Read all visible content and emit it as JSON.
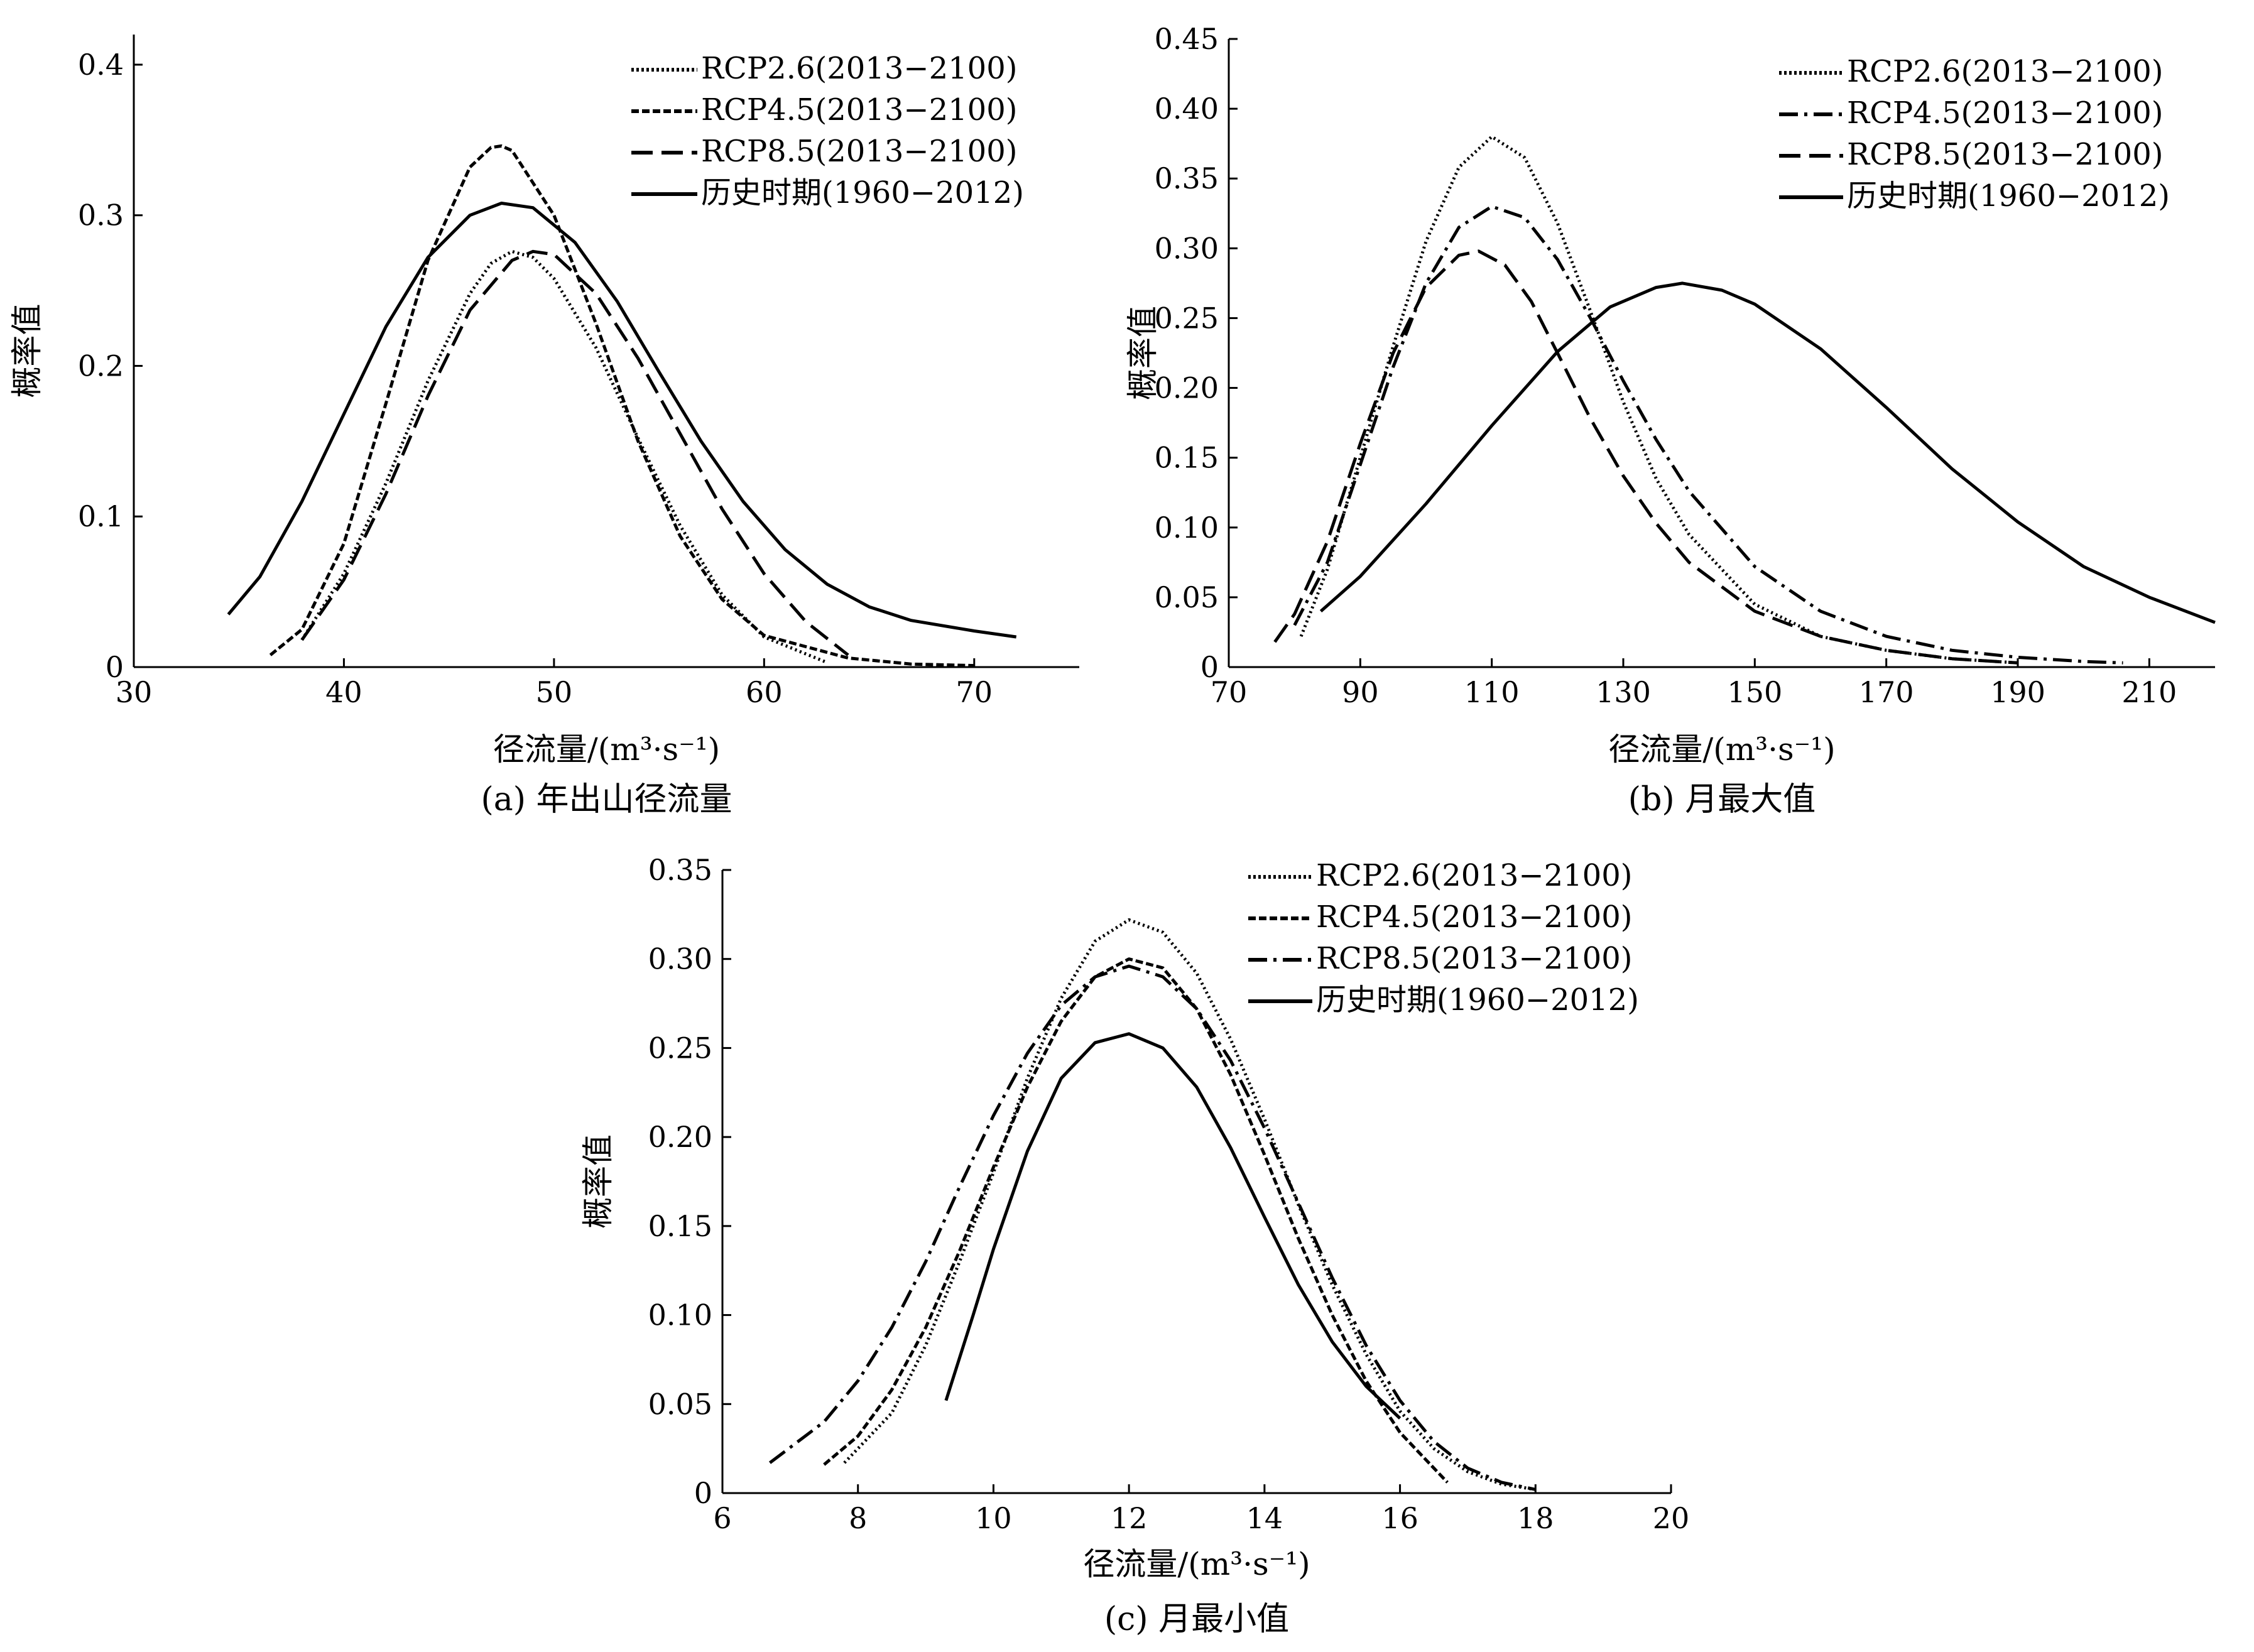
{
  "figure": {
    "panels": [
      {
        "caption": "(a) 年出山径流量",
        "chart_data": {
          "type": "line",
          "title": "",
          "xlabel": "径流量/(m³·s⁻¹)",
          "ylabel": "概率值",
          "xlim": [
            30,
            75
          ],
          "ylim": [
            0,
            0.42
          ],
          "xticks": [
            30,
            40,
            50,
            60,
            70
          ],
          "yticks": [
            0,
            0.1,
            0.2,
            0.3,
            0.4
          ],
          "xtick_labels": [
            "30",
            "40",
            "50",
            "60",
            "70"
          ],
          "ytick_labels": [
            "0",
            "0.1",
            "0.2",
            "0.3",
            "0.4"
          ],
          "grid": false,
          "legend_position": "top-right",
          "series": [
            {
              "name": "RCP2.6(2013−2100)",
              "style": "dotted",
              "x": [
                38,
                40,
                42,
                44,
                46,
                47,
                48,
                49,
                50,
                52,
                54,
                56,
                58,
                60,
                63
              ],
              "y": [
                0.018,
                0.062,
                0.122,
                0.19,
                0.248,
                0.268,
                0.276,
                0.272,
                0.258,
                0.212,
                0.152,
                0.094,
                0.048,
                0.02,
                0.003
              ]
            },
            {
              "name": "RCP4.5(2013−2100)",
              "style": "short-dash",
              "x": [
                36.5,
                38,
                40,
                42,
                44,
                46,
                47,
                47.5,
                48,
                50,
                52,
                54,
                56,
                58,
                60,
                64,
                67,
                70
              ],
              "y": [
                0.008,
                0.025,
                0.082,
                0.175,
                0.27,
                0.332,
                0.345,
                0.346,
                0.343,
                0.3,
                0.228,
                0.15,
                0.087,
                0.045,
                0.021,
                0.006,
                0.002,
                0.001
              ]
            },
            {
              "name": "RCP8.5(2013−2100)",
              "style": "long-dash",
              "x": [
                38,
                40,
                42,
                44,
                46,
                48,
                49,
                50,
                52,
                54,
                56,
                58,
                60,
                62,
                64
              ],
              "y": [
                0.018,
                0.058,
                0.115,
                0.18,
                0.237,
                0.27,
                0.276,
                0.274,
                0.248,
                0.205,
                0.155,
                0.105,
                0.062,
                0.03,
                0.008
              ]
            },
            {
              "name": "历史时期(1960−2012)",
              "style": "solid",
              "x": [
                34.5,
                36,
                38,
                40,
                42,
                44,
                46,
                47.5,
                49,
                51,
                53,
                55,
                57,
                59,
                61,
                63,
                65,
                67,
                70,
                72
              ],
              "y": [
                0.035,
                0.06,
                0.11,
                0.168,
                0.226,
                0.272,
                0.3,
                0.308,
                0.305,
                0.282,
                0.243,
                0.196,
                0.15,
                0.11,
                0.078,
                0.055,
                0.04,
                0.031,
                0.024,
                0.02
              ]
            }
          ]
        }
      },
      {
        "caption": "(b) 月最大值",
        "chart_data": {
          "type": "line",
          "title": "",
          "xlabel": "径流量/(m³·s⁻¹)",
          "ylabel": "概率值",
          "xlim": [
            70,
            220
          ],
          "ylim": [
            0,
            0.45
          ],
          "xticks": [
            70,
            90,
            110,
            130,
            150,
            170,
            190,
            210
          ],
          "yticks": [
            0,
            0.05,
            0.1,
            0.15,
            0.2,
            0.25,
            0.3,
            0.35,
            0.4,
            0.45
          ],
          "xtick_labels": [
            "70",
            "90",
            "110",
            "130",
            "150",
            "170",
            "190",
            "210"
          ],
          "ytick_labels": [
            "0",
            "0.05",
            "0.10",
            "0.15",
            "0.20",
            "0.25",
            "0.30",
            "0.35",
            "0.40",
            "0.45"
          ],
          "grid": false,
          "legend_position": "top-right",
          "series": [
            {
              "name": "RCP2.6(2013−2100)",
              "style": "dotted",
              "x": [
                81,
                85,
                90,
                95,
                100,
                105,
                110,
                115,
                120,
                125,
                130,
                135,
                140,
                150,
                160,
                170,
                180,
                190
              ],
              "y": [
                0.022,
                0.07,
                0.15,
                0.23,
                0.305,
                0.358,
                0.38,
                0.365,
                0.318,
                0.255,
                0.19,
                0.135,
                0.095,
                0.045,
                0.022,
                0.012,
                0.006,
                0.003
              ]
            },
            {
              "name": "RCP4.5(2013−2100)",
              "style": "dash-dot",
              "x": [
                80,
                85,
                90,
                95,
                100,
                105,
                110,
                115,
                120,
                125,
                130,
                135,
                140,
                150,
                160,
                170,
                180,
                190,
                200,
                206
              ],
              "y": [
                0.03,
                0.075,
                0.145,
                0.215,
                0.275,
                0.315,
                0.33,
                0.322,
                0.292,
                0.25,
                0.205,
                0.163,
                0.126,
                0.072,
                0.04,
                0.022,
                0.012,
                0.007,
                0.004,
                0.003
              ]
            },
            {
              "name": "RCP8.5(2013−2100)",
              "style": "long-dash",
              "x": [
                77,
                80,
                85,
                90,
                95,
                100,
                105,
                108,
                112,
                116,
                120,
                125,
                130,
                135,
                140,
                150,
                160,
                170,
                180,
                190
              ],
              "y": [
                0.018,
                0.038,
                0.09,
                0.16,
                0.225,
                0.272,
                0.295,
                0.298,
                0.288,
                0.262,
                0.225,
                0.178,
                0.137,
                0.103,
                0.075,
                0.04,
                0.022,
                0.012,
                0.006,
                0.003
              ]
            },
            {
              "name": "历史时期(1960−2012)",
              "style": "solid",
              "x": [
                84,
                90,
                100,
                110,
                120,
                128,
                135,
                139,
                145,
                150,
                160,
                170,
                180,
                190,
                200,
                210,
                220
              ],
              "y": [
                0.04,
                0.065,
                0.117,
                0.173,
                0.226,
                0.258,
                0.272,
                0.275,
                0.27,
                0.26,
                0.228,
                0.186,
                0.142,
                0.104,
                0.072,
                0.05,
                0.032
              ]
            }
          ]
        }
      },
      {
        "caption": "(c) 月最小值",
        "chart_data": {
          "type": "line",
          "title": "",
          "xlabel": "径流量/(m³·s⁻¹)",
          "ylabel": "概率值",
          "xlim": [
            6,
            20
          ],
          "ylim": [
            0,
            0.35
          ],
          "xticks": [
            6,
            8,
            10,
            12,
            14,
            16,
            18,
            20
          ],
          "yticks": [
            0,
            0.05,
            0.1,
            0.15,
            0.2,
            0.25,
            0.3,
            0.35
          ],
          "xtick_labels": [
            "6",
            "8",
            "10",
            "12",
            "14",
            "16",
            "18",
            "20"
          ],
          "ytick_labels": [
            "0",
            "0.05",
            "0.10",
            "0.15",
            "0.20",
            "0.25",
            "0.30",
            "0.35"
          ],
          "grid": false,
          "legend_position": "top-right",
          "series": [
            {
              "name": "RCP2.6(2013−2100)",
              "style": "dotted",
              "x": [
                7.8,
                8.5,
                9,
                9.5,
                10,
                10.5,
                11,
                11.5,
                12,
                12.5,
                13,
                13.5,
                14,
                14.5,
                15,
                15.5,
                16,
                16.5,
                17,
                17.5,
                18
              ],
              "y": [
                0.017,
                0.045,
                0.083,
                0.13,
                0.18,
                0.233,
                0.278,
                0.31,
                0.322,
                0.315,
                0.292,
                0.255,
                0.21,
                0.162,
                0.117,
                0.078,
                0.046,
                0.025,
                0.012,
                0.005,
                0.002
              ]
            },
            {
              "name": "RCP4.5(2013−2100)",
              "style": "short-dash",
              "x": [
                7.5,
                8,
                8.5,
                9,
                9.5,
                10,
                10.5,
                11,
                11.5,
                12,
                12.5,
                13,
                13.5,
                14,
                14.5,
                15,
                15.5,
                16,
                16.7
              ],
              "y": [
                0.016,
                0.032,
                0.058,
                0.093,
                0.136,
                0.183,
                0.228,
                0.265,
                0.29,
                0.3,
                0.295,
                0.272,
                0.235,
                0.19,
                0.143,
                0.1,
                0.063,
                0.034,
                0.006
              ]
            },
            {
              "name": "RCP8.5(2013−2100)",
              "style": "dash-dot",
              "x": [
                6.7,
                7.5,
                8,
                8.5,
                9,
                9.5,
                10,
                10.5,
                11,
                11.5,
                12,
                12.5,
                13,
                13.5,
                14,
                14.5,
                15,
                15.5,
                16,
                16.5,
                17,
                17.5,
                18
              ],
              "y": [
                0.017,
                0.04,
                0.063,
                0.093,
                0.13,
                0.172,
                0.212,
                0.247,
                0.274,
                0.29,
                0.296,
                0.29,
                0.272,
                0.243,
                0.205,
                0.163,
                0.121,
                0.083,
                0.052,
                0.029,
                0.014,
                0.006,
                0.002
              ]
            },
            {
              "name": "历史时期(1960−2012)",
              "style": "solid",
              "x": [
                9.3,
                9.7,
                10,
                10.5,
                11,
                11.5,
                12,
                12.5,
                13,
                13.5,
                14,
                14.5,
                15,
                15.5,
                16
              ],
              "y": [
                0.052,
                0.1,
                0.137,
                0.192,
                0.233,
                0.253,
                0.258,
                0.25,
                0.228,
                0.194,
                0.155,
                0.117,
                0.085,
                0.06,
                0.042
              ]
            }
          ]
        }
      }
    ]
  }
}
